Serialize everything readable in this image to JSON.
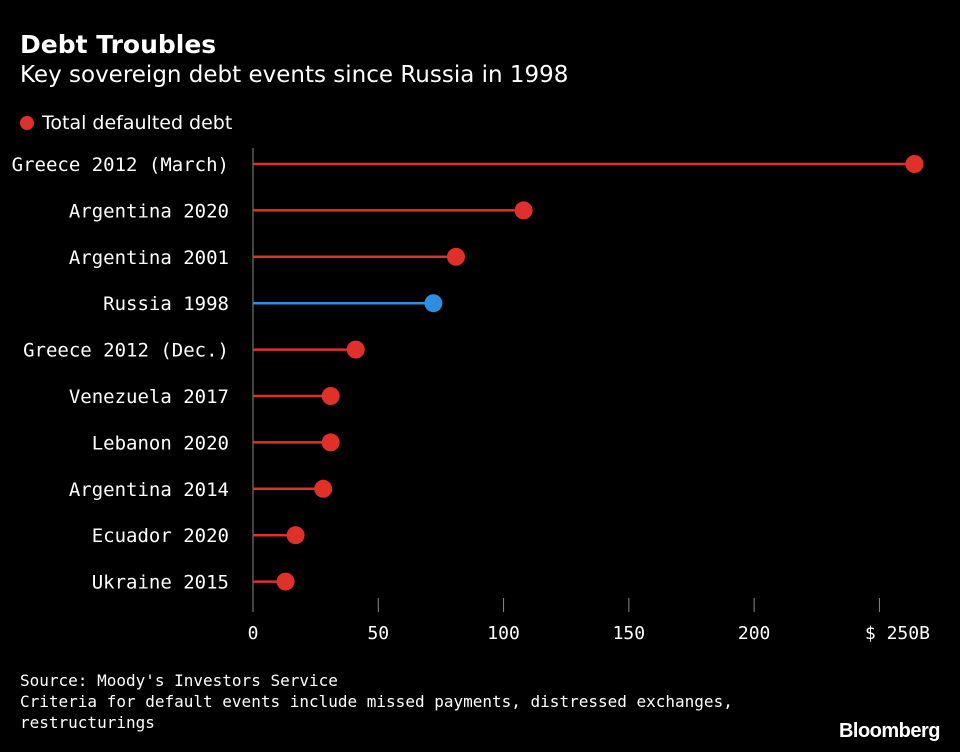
{
  "header": {
    "title": "Debt Troubles",
    "subtitle": "Key sovereign debt events since Russia in 1998"
  },
  "legend": {
    "label": "Total defaulted debt",
    "color": "#e0302a"
  },
  "colors": {
    "default": "#e0302a",
    "highlight": "#2d8ee0",
    "axis": "#8a8a8a"
  },
  "chart_data": {
    "type": "lollipop",
    "categories": [
      "Greece 2012 (March)",
      "Argentina 2020",
      "Argentina 2001",
      "Russia 1998",
      "Greece 2012 (Dec.)",
      "Venezuela 2017",
      "Lebanon 2020",
      "Argentina 2014",
      "Ecuador 2020",
      "Ukraine 2015"
    ],
    "series": [
      {
        "name": "Total defaulted debt",
        "values": [
          264,
          108,
          81,
          72,
          41,
          31,
          31,
          28,
          17,
          13
        ]
      }
    ],
    "highlight": "Russia 1998",
    "xlim": [
      0,
      265
    ],
    "xticks": [
      0,
      50,
      100,
      150,
      200,
      250
    ],
    "xtick_labels": [
      "0",
      "50",
      "100",
      "150",
      "200",
      "$ 250B"
    ],
    "legend_position": "top-left",
    "grid": false
  },
  "footer": {
    "source": "Source: Moody's Investors Service",
    "note_line1": "Criteria for default events include missed payments, distressed exchanges,",
    "note_line2": "restructurings"
  },
  "brand": "Bloomberg"
}
